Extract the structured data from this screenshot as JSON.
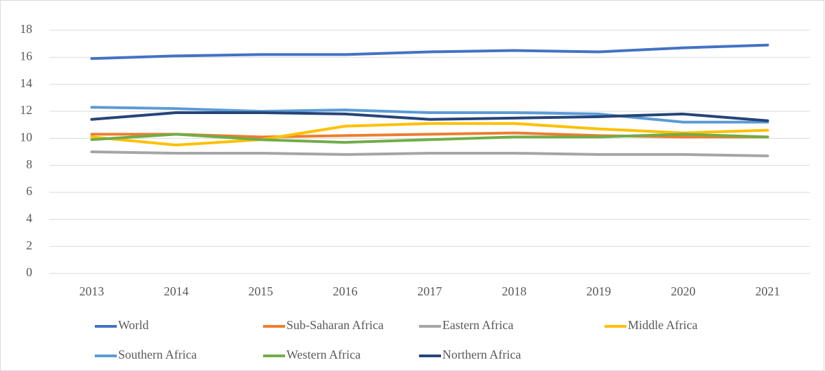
{
  "chart_data": {
    "type": "line",
    "categories": [
      "2013",
      "2014",
      "2015",
      "2016",
      "2017",
      "2018",
      "2019",
      "2020",
      "2021"
    ],
    "series": [
      {
        "name": "World",
        "color": "#4472c4",
        "values": [
          15.9,
          16.1,
          16.2,
          16.2,
          16.4,
          16.5,
          16.4,
          16.7,
          16.9
        ]
      },
      {
        "name": "Sub-Saharan Africa",
        "color": "#ed7d31",
        "values": [
          10.3,
          10.3,
          10.1,
          10.2,
          10.3,
          10.4,
          10.2,
          10.1,
          10.1
        ]
      },
      {
        "name": "Eastern Africa",
        "color": "#a5a5a5",
        "values": [
          9.0,
          8.9,
          8.9,
          8.8,
          8.9,
          8.9,
          8.8,
          8.8,
          8.7
        ]
      },
      {
        "name": "Middle Africa",
        "color": "#ffc000",
        "values": [
          10.1,
          9.5,
          9.9,
          10.9,
          11.1,
          11.1,
          10.7,
          10.4,
          10.6
        ]
      },
      {
        "name": "Southern Africa",
        "color": "#5b9bd5",
        "values": [
          12.3,
          12.2,
          12.0,
          12.1,
          11.9,
          11.9,
          11.8,
          11.2,
          11.2
        ]
      },
      {
        "name": "Western Africa",
        "color": "#70ad47",
        "values": [
          9.9,
          10.3,
          9.9,
          9.7,
          9.9,
          10.1,
          10.1,
          10.3,
          10.1
        ]
      },
      {
        "name": "Northern Africa",
        "color": "#264478",
        "values": [
          11.4,
          11.9,
          11.9,
          11.8,
          11.4,
          11.5,
          11.6,
          11.8,
          11.3
        ]
      }
    ],
    "ylim": [
      0,
      18
    ],
    "yticks": [
      0,
      2,
      4,
      6,
      8,
      10,
      12,
      14,
      16,
      18
    ],
    "grid": true,
    "legend": "bottom"
  }
}
